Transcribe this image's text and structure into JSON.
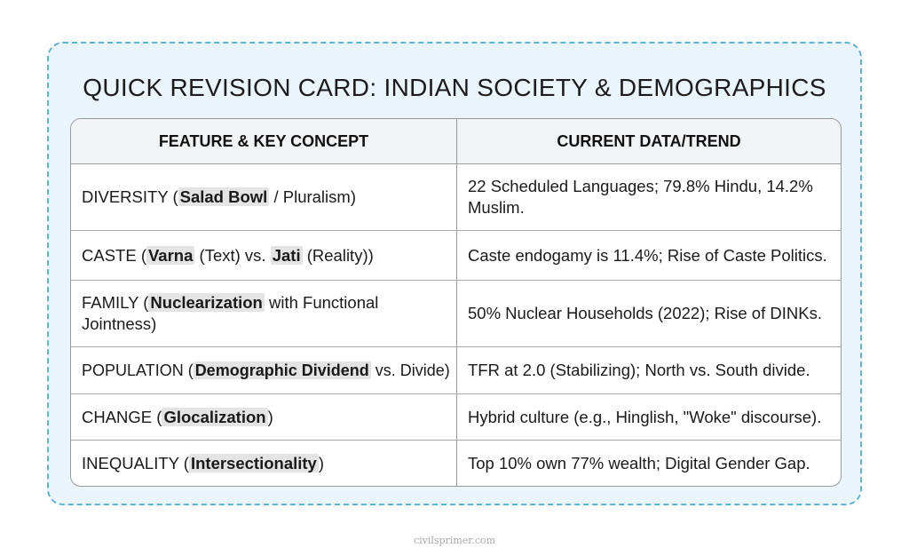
{
  "title": "QUICK REVISION CARD: INDIAN SOCIETY & DEMOGRAPHICS",
  "headers": [
    "FEATURE & KEY CONCEPT",
    "CURRENT DATA/TREND"
  ],
  "rows": [
    {
      "feature": {
        "before": "DIVERSITY (",
        "keyword": "Salad Bowl",
        "after": " / Pluralism)"
      },
      "trend": "22 Scheduled Languages; 79.8% Hindu, 14.2% Muslim."
    },
    {
      "feature": {
        "before": "CASTE (",
        "keyword": "Varna",
        "middle": " (Text) vs. ",
        "keyword2": "Jati",
        "after": " (Reality))"
      },
      "trend": "Caste endogamy is 11.4%; Rise of Caste Politics."
    },
    {
      "feature": {
        "before": "FAMILY (",
        "keyword": "Nuclearization",
        "after": " with Functional Jointness)"
      },
      "trend": "50% Nuclear Households (2022); Rise of DINKs."
    },
    {
      "feature": {
        "before": "POPULATION (",
        "keyword": "Demographic Dividend",
        "after": " vs. Divide)"
      },
      "trend": "TFR at 2.0 (Stabilizing); North vs. South divide."
    },
    {
      "feature": {
        "before": "CHANGE (",
        "keyword": "Glocalization",
        "after": ")"
      },
      "trend": "Hybrid culture (e.g., Hinglish, \"Woke\" discourse)."
    },
    {
      "feature": {
        "before": "INEQUALITY (",
        "keyword": "Intersectionality",
        "after": ")"
      },
      "trend": "Top 10% own 77% wealth; Digital Gender Gap."
    }
  ],
  "footer": "civilsprimer.com"
}
